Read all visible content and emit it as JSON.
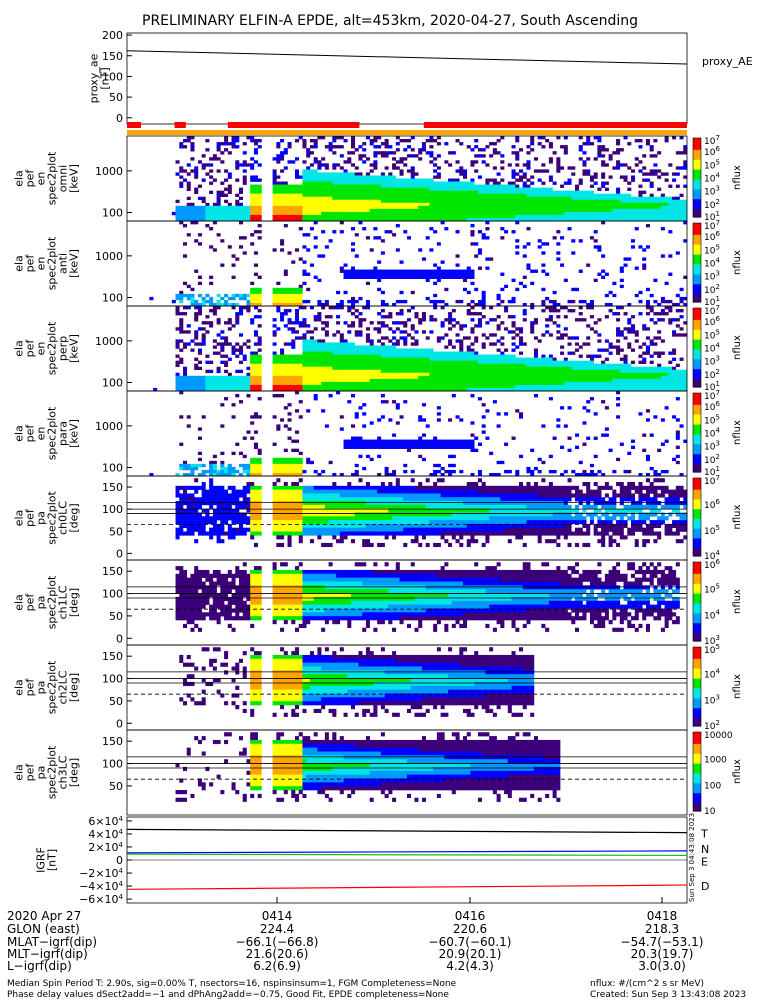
{
  "title": "PRELIMINARY ELFIN-A EPDE, alt=453km, 2020-04-27, South Ascending",
  "colors": {
    "palette": [
      "#3b007a",
      "#0000ff",
      "#0099ff",
      "#00e6e6",
      "#00e600",
      "#ffff00",
      "#ffa500",
      "#ff0000"
    ],
    "bar_orange": "#ffa500",
    "bar_red": "#ff0000",
    "T": "#000000",
    "N": "#0000ff",
    "E": "#00cc00",
    "D": "#ff0000"
  },
  "chart_data": [
    {
      "type": "line",
      "ylabel": "proxy_ae\n[nT]",
      "legend": "proxy_AE",
      "yticks": [
        "200",
        "150",
        "100",
        "50",
        "0"
      ],
      "ylim": [
        -15,
        205
      ],
      "series": [
        {
          "name": "proxy_AE",
          "start": 162,
          "end": 130
        }
      ]
    },
    {
      "type": "bar",
      "segments": [
        {
          "t0": 0.0,
          "t1": 0.025,
          "color": "red"
        },
        {
          "t0": 0.085,
          "t1": 0.105,
          "color": "red"
        },
        {
          "t0": 0.18,
          "t1": 0.415,
          "color": "red"
        },
        {
          "t0": 0.53,
          "t1": 1.0,
          "color": "red"
        }
      ]
    },
    {
      "type": "heatmap",
      "ylabel": "ela\npef\nen\nspec2plot\nomni\n[keV]",
      "yticks": [
        "1000",
        "100"
      ],
      "colorbar": {
        "label": "nflux",
        "ticks": [
          "10^7",
          "10^6",
          "10^5",
          "10^4",
          "10^3",
          "10^2",
          "10^1"
        ]
      }
    },
    {
      "type": "heatmap",
      "ylabel": "ela\npef\nen\nspec2plot\nanti\n[keV]",
      "yticks": [
        "1000",
        "100"
      ],
      "colorbar": {
        "label": "nflux",
        "ticks": [
          "10^7",
          "10^6",
          "10^5",
          "10^4",
          "10^3",
          "10^2",
          "10^1"
        ]
      }
    },
    {
      "type": "heatmap",
      "ylabel": "ela\npef\nen\nspec2plot\nperp\n[keV]",
      "yticks": [
        "1000",
        "100"
      ],
      "colorbar": {
        "label": "nflux",
        "ticks": [
          "10^7",
          "10^6",
          "10^5",
          "10^4",
          "10^3",
          "10^2",
          "10^1"
        ]
      }
    },
    {
      "type": "heatmap",
      "ylabel": "ela\npef\nen\nspec2plot\npara\n[keV]",
      "yticks": [
        "1000",
        "100"
      ],
      "colorbar": {
        "label": "nflux",
        "ticks": [
          "10^7",
          "10^6",
          "10^5",
          "10^4",
          "10^3",
          "10^2",
          "10^1"
        ]
      }
    },
    {
      "type": "heatmap",
      "ylabel": "ela\npef\npa\nspec2plot\nch0LC\n[deg]",
      "yticks": [
        "150",
        "100",
        "50",
        "0"
      ],
      "colorbar": {
        "label": "nflux",
        "ticks": [
          "10^7",
          "10^6",
          "10^5",
          "10^4"
        ]
      }
    },
    {
      "type": "heatmap",
      "ylabel": "ela\npef\npa\nspec2plot\nch1LC\n[deg]",
      "yticks": [
        "150",
        "100",
        "50",
        "0"
      ],
      "colorbar": {
        "label": "nflux",
        "ticks": [
          "10^6",
          "10^5",
          "10^4",
          "10^3"
        ]
      }
    },
    {
      "type": "heatmap",
      "ylabel": "ela\npef\npa\nspec2plot\nch2LC\n[deg]",
      "yticks": [
        "150",
        "100",
        "50",
        "0"
      ],
      "colorbar": {
        "label": "nflux",
        "ticks": [
          "10^5",
          "10^4",
          "10^3",
          "10^2"
        ]
      }
    },
    {
      "type": "heatmap",
      "ylabel": "ela\npef\npa\nspec2plot\nch3LC\n[deg]",
      "yticks": [
        "150",
        "100",
        "50"
      ],
      "colorbar": {
        "label": "nflux",
        "ticks": [
          "10000",
          "1000",
          "100",
          "10"
        ]
      }
    },
    {
      "type": "line",
      "ylabel": "IGRF\n[nT]",
      "yticks": [
        "6×10^4",
        "4×10^4",
        "2×10^4",
        "0",
        "−2×10^4",
        "−4×10^4",
        "−6×10^4"
      ],
      "ylim": [
        -66000,
        66000
      ],
      "series": [
        {
          "name": "T",
          "start": 47000,
          "end": 42000
        },
        {
          "name": "N",
          "start": 11000,
          "end": 14000
        },
        {
          "name": "E",
          "start": 9000,
          "end": 7000
        },
        {
          "name": "D",
          "start": -45000,
          "end": -38500
        }
      ]
    }
  ],
  "xaxis": {
    "date": "2020 Apr 27",
    "ticks": [
      {
        "label": "0414",
        "glon": "224.4",
        "mlat": "−66.1(−66.8)",
        "mlt": "21.6(20.6)",
        "l": "6.2(6.9)"
      },
      {
        "label": "0416",
        "glon": "220.6",
        "mlat": "−60.7(−60.1)",
        "mlt": "20.9(20.1)",
        "l": "4.2(4.3)"
      },
      {
        "label": "0418",
        "glon": "218.3",
        "mlat": "−54.7(−53.1)",
        "mlt": "20.3(19.7)",
        "l": "3.0(3.0)"
      }
    ],
    "row_labels": [
      "GLON (east)",
      "MLAT−igrf(dip)",
      "MLT−igrf(dip)",
      "L−igrf(dip)"
    ]
  },
  "footer": {
    "line1": "Median Spin Period T: 2.90s, sig=0.00% T, nsectors=16, nspinsinsum=1, FGM Completeness=None",
    "line2": "Phase delay values dSect2add=−1 and dPhAng2add=−0.75, Good Fit, EPDE completeness=None",
    "units": "nflux: #/(cm^2 s sr MeV)",
    "created": "Created: Sun Sep  3 13:43:08 2023"
  },
  "side_stamp": "Sun Sep  3 04:43:08 2023"
}
